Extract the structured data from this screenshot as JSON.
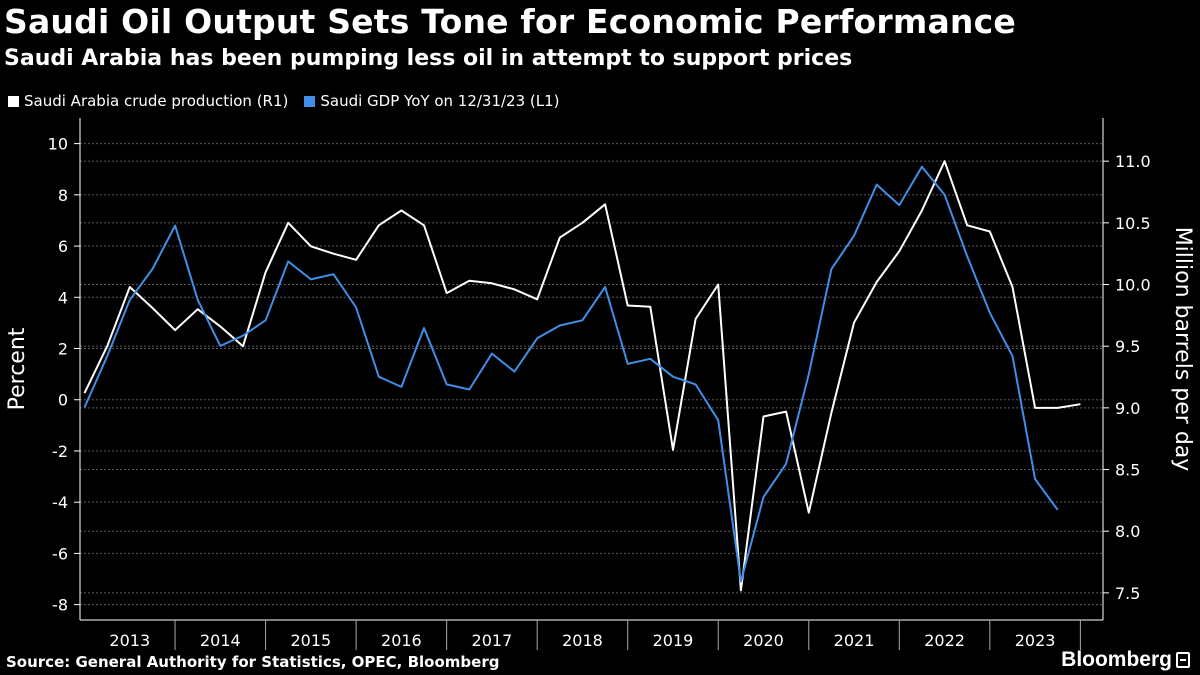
{
  "colors": {
    "background": "#000000",
    "production": "#ffffff",
    "gdp": "#3f8fe8",
    "grid": "#5a5a5a"
  },
  "header": {
    "title": "Saudi Oil Output Sets Tone for Economic Performance",
    "subtitle": "Saudi Arabia has been pumping less oil in attempt to support prices"
  },
  "footer": {
    "source": "Source: General Authority for Statistics, OPEC, Bloomberg",
    "brand": "Bloomberg",
    "brand_icon": "bloomberg-terminal-icon"
  },
  "chart_data": {
    "type": "line",
    "title": "Saudi Oil Output Sets Tone for Economic Performance",
    "subtitle": "Saudi Arabia has been pumping less oil in attempt to support prices",
    "x_categories": [
      "2013",
      "2014",
      "2015",
      "2016",
      "2017",
      "2018",
      "2019",
      "2020",
      "2021",
      "2022",
      "2023"
    ],
    "x_tick_labels": [
      "2013",
      "2014",
      "2015",
      "2016",
      "2017",
      "2018",
      "2019",
      "2020",
      "2021",
      "2022",
      "2023"
    ],
    "left_axis": {
      "label": "Percent",
      "range": [
        -8.6,
        11.0
      ],
      "ticks": [
        -8,
        -6,
        -4,
        -2,
        0,
        2,
        4,
        6,
        8,
        10
      ]
    },
    "right_axis": {
      "label": "Million barrels per day",
      "range": [
        7.28,
        11.35
      ],
      "ticks": [
        "7.5",
        "8.0",
        "8.5",
        "9.0",
        "9.5",
        "10.0",
        "10.5",
        "11.0"
      ]
    },
    "legend_position": "top-left",
    "grid": true,
    "series": [
      {
        "name": "Saudi Arabia crude production (R1)",
        "axis": "right",
        "color": "#ffffff",
        "x": [
          2013.0,
          2013.25,
          2013.5,
          2013.75,
          2014.0,
          2014.25,
          2014.5,
          2014.75,
          2015.0,
          2015.25,
          2015.5,
          2015.75,
          2016.0,
          2016.25,
          2016.5,
          2016.75,
          2017.0,
          2017.25,
          2017.5,
          2017.75,
          2018.0,
          2018.25,
          2018.5,
          2018.75,
          2019.0,
          2019.25,
          2019.5,
          2019.75,
          2020.0,
          2020.25,
          2020.5,
          2020.75,
          2021.0,
          2021.25,
          2021.5,
          2021.75,
          2022.0,
          2022.25,
          2022.5,
          2022.75,
          2023.0,
          2023.25,
          2023.5,
          2023.75,
          2024.0
        ],
        "values": [
          9.12,
          9.5,
          9.98,
          9.81,
          9.63,
          9.8,
          9.66,
          9.5,
          10.1,
          10.5,
          10.31,
          10.25,
          10.2,
          10.48,
          10.6,
          10.48,
          9.93,
          10.03,
          10.01,
          9.96,
          9.88,
          10.38,
          10.5,
          10.65,
          9.83,
          9.82,
          8.66,
          9.72,
          10.0,
          7.52,
          8.93,
          8.97,
          8.15,
          8.96,
          9.69,
          10.02,
          10.27,
          10.6,
          11.0,
          10.48,
          10.43,
          9.98,
          9.0,
          9.0,
          9.03
        ]
      },
      {
        "name": "Saudi GDP YoY on 12/31/23 (L1)",
        "axis": "left",
        "color": "#3f8fe8",
        "x": [
          2013.0,
          2013.25,
          2013.5,
          2013.75,
          2014.0,
          2014.25,
          2014.5,
          2014.75,
          2015.0,
          2015.25,
          2015.5,
          2015.75,
          2016.0,
          2016.25,
          2016.5,
          2016.75,
          2017.0,
          2017.25,
          2017.5,
          2017.75,
          2018.0,
          2018.25,
          2018.5,
          2018.75,
          2019.0,
          2019.25,
          2019.5,
          2019.75,
          2020.0,
          2020.25,
          2020.5,
          2020.75,
          2021.0,
          2021.25,
          2021.5,
          2021.75,
          2022.0,
          2022.25,
          2022.5,
          2022.75,
          2023.0,
          2023.25,
          2023.5,
          2023.75
        ],
        "values": [
          -0.3,
          1.7,
          3.9,
          5.1,
          6.8,
          3.9,
          2.1,
          2.5,
          3.1,
          5.4,
          4.7,
          4.9,
          3.6,
          0.9,
          0.5,
          2.8,
          0.6,
          0.4,
          1.8,
          1.1,
          2.4,
          2.9,
          3.1,
          4.4,
          1.4,
          1.6,
          0.9,
          0.6,
          -0.8,
          -7.1,
          -3.8,
          -2.5,
          1.0,
          5.1,
          6.4,
          8.4,
          7.6,
          9.1,
          8.0,
          5.6,
          3.4,
          1.7,
          -3.1,
          -4.3
        ]
      }
    ]
  }
}
